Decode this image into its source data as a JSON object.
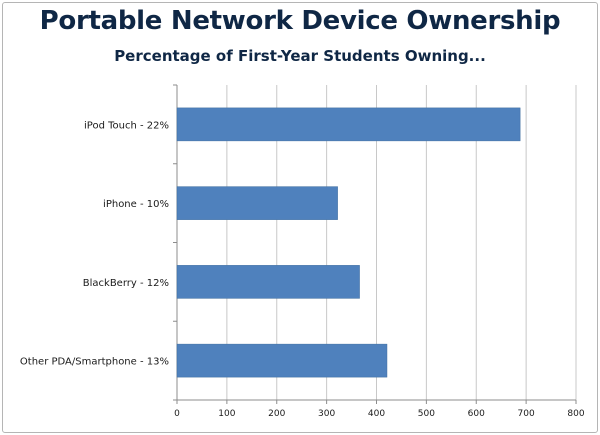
{
  "chart_data": {
    "type": "bar",
    "orientation": "horizontal",
    "title": "Portable Network Device Ownership",
    "subtitle": "Percentage of First-Year Students Owning...",
    "categories": [
      "iPod Touch - 22%",
      "iPhone - 10%",
      "BlackBerry - 12%",
      "Other PDA/Smartphone - 13%"
    ],
    "values": [
      688,
      322,
      366,
      421
    ],
    "xlabel": "",
    "ylabel": "",
    "xlim": [
      0,
      800
    ],
    "x_ticks": [
      "0",
      "100",
      "200",
      "300",
      "400",
      "500",
      "600",
      "700",
      "800"
    ],
    "grid": "vertical",
    "legend": "none",
    "bar_color": "#4f81bd",
    "grid_color": "#c8c8c8",
    "title_color": "#0f2745"
  }
}
